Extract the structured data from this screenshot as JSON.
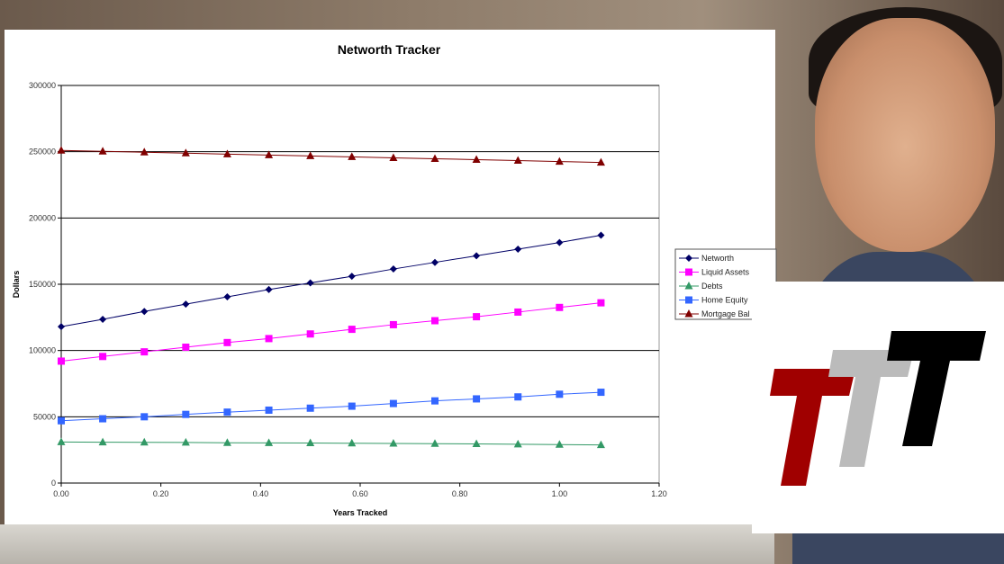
{
  "chart_data": {
    "type": "line",
    "title": "Networth Tracker",
    "xlabel": "Years Tracked",
    "ylabel": "Dollars",
    "xlim": [
      0,
      1.2
    ],
    "ylim": [
      0,
      300000
    ],
    "xticks": [
      "0.00",
      "0.20",
      "0.40",
      "0.60",
      "0.80",
      "1.00",
      "1.20"
    ],
    "yticks": [
      "0",
      "50000",
      "100000",
      "150000",
      "200000",
      "250000",
      "300000"
    ],
    "grid": "horizontal",
    "legend_position": "right",
    "x": [
      0,
      0.0833,
      0.1667,
      0.25,
      0.3333,
      0.4167,
      0.5,
      0.5833,
      0.6667,
      0.75,
      0.8333,
      0.9167,
      1.0,
      1.0833
    ],
    "series": [
      {
        "name": "Networth",
        "color": "#000066",
        "marker": "diamond",
        "values": [
          118000,
          123500,
          129500,
          135000,
          140500,
          146000,
          151000,
          156000,
          161500,
          166500,
          171500,
          176500,
          181500,
          187000
        ]
      },
      {
        "name": "Liquid Assets",
        "color": "#ff00ff",
        "marker": "square",
        "values": [
          92000,
          95500,
          99000,
          102500,
          106000,
          109000,
          112500,
          116000,
          119500,
          122500,
          125500,
          129000,
          132500,
          136000
        ]
      },
      {
        "name": "Debts",
        "color": "#339966",
        "marker": "triangle",
        "values": [
          31000,
          30800,
          30700,
          30600,
          30400,
          30300,
          30200,
          30000,
          29900,
          29700,
          29500,
          29300,
          29000,
          28800
        ]
      },
      {
        "name": "Home Equity",
        "color": "#3366ff",
        "marker": "square",
        "values": [
          47000,
          48500,
          50000,
          51800,
          53500,
          55000,
          56500,
          58000,
          60000,
          62000,
          63500,
          65000,
          67000,
          68500
        ]
      },
      {
        "name": "Mortgage Bal",
        "color": "#800000",
        "marker": "triangle",
        "values": [
          251000,
          250300,
          249600,
          248900,
          248200,
          247500,
          246800,
          246100,
          245400,
          244700,
          244000,
          243300,
          242600,
          241900
        ]
      }
    ]
  },
  "logo": {
    "text": "TTT",
    "colors": [
      "#a00000",
      "#bbbbbb",
      "#000000"
    ]
  }
}
